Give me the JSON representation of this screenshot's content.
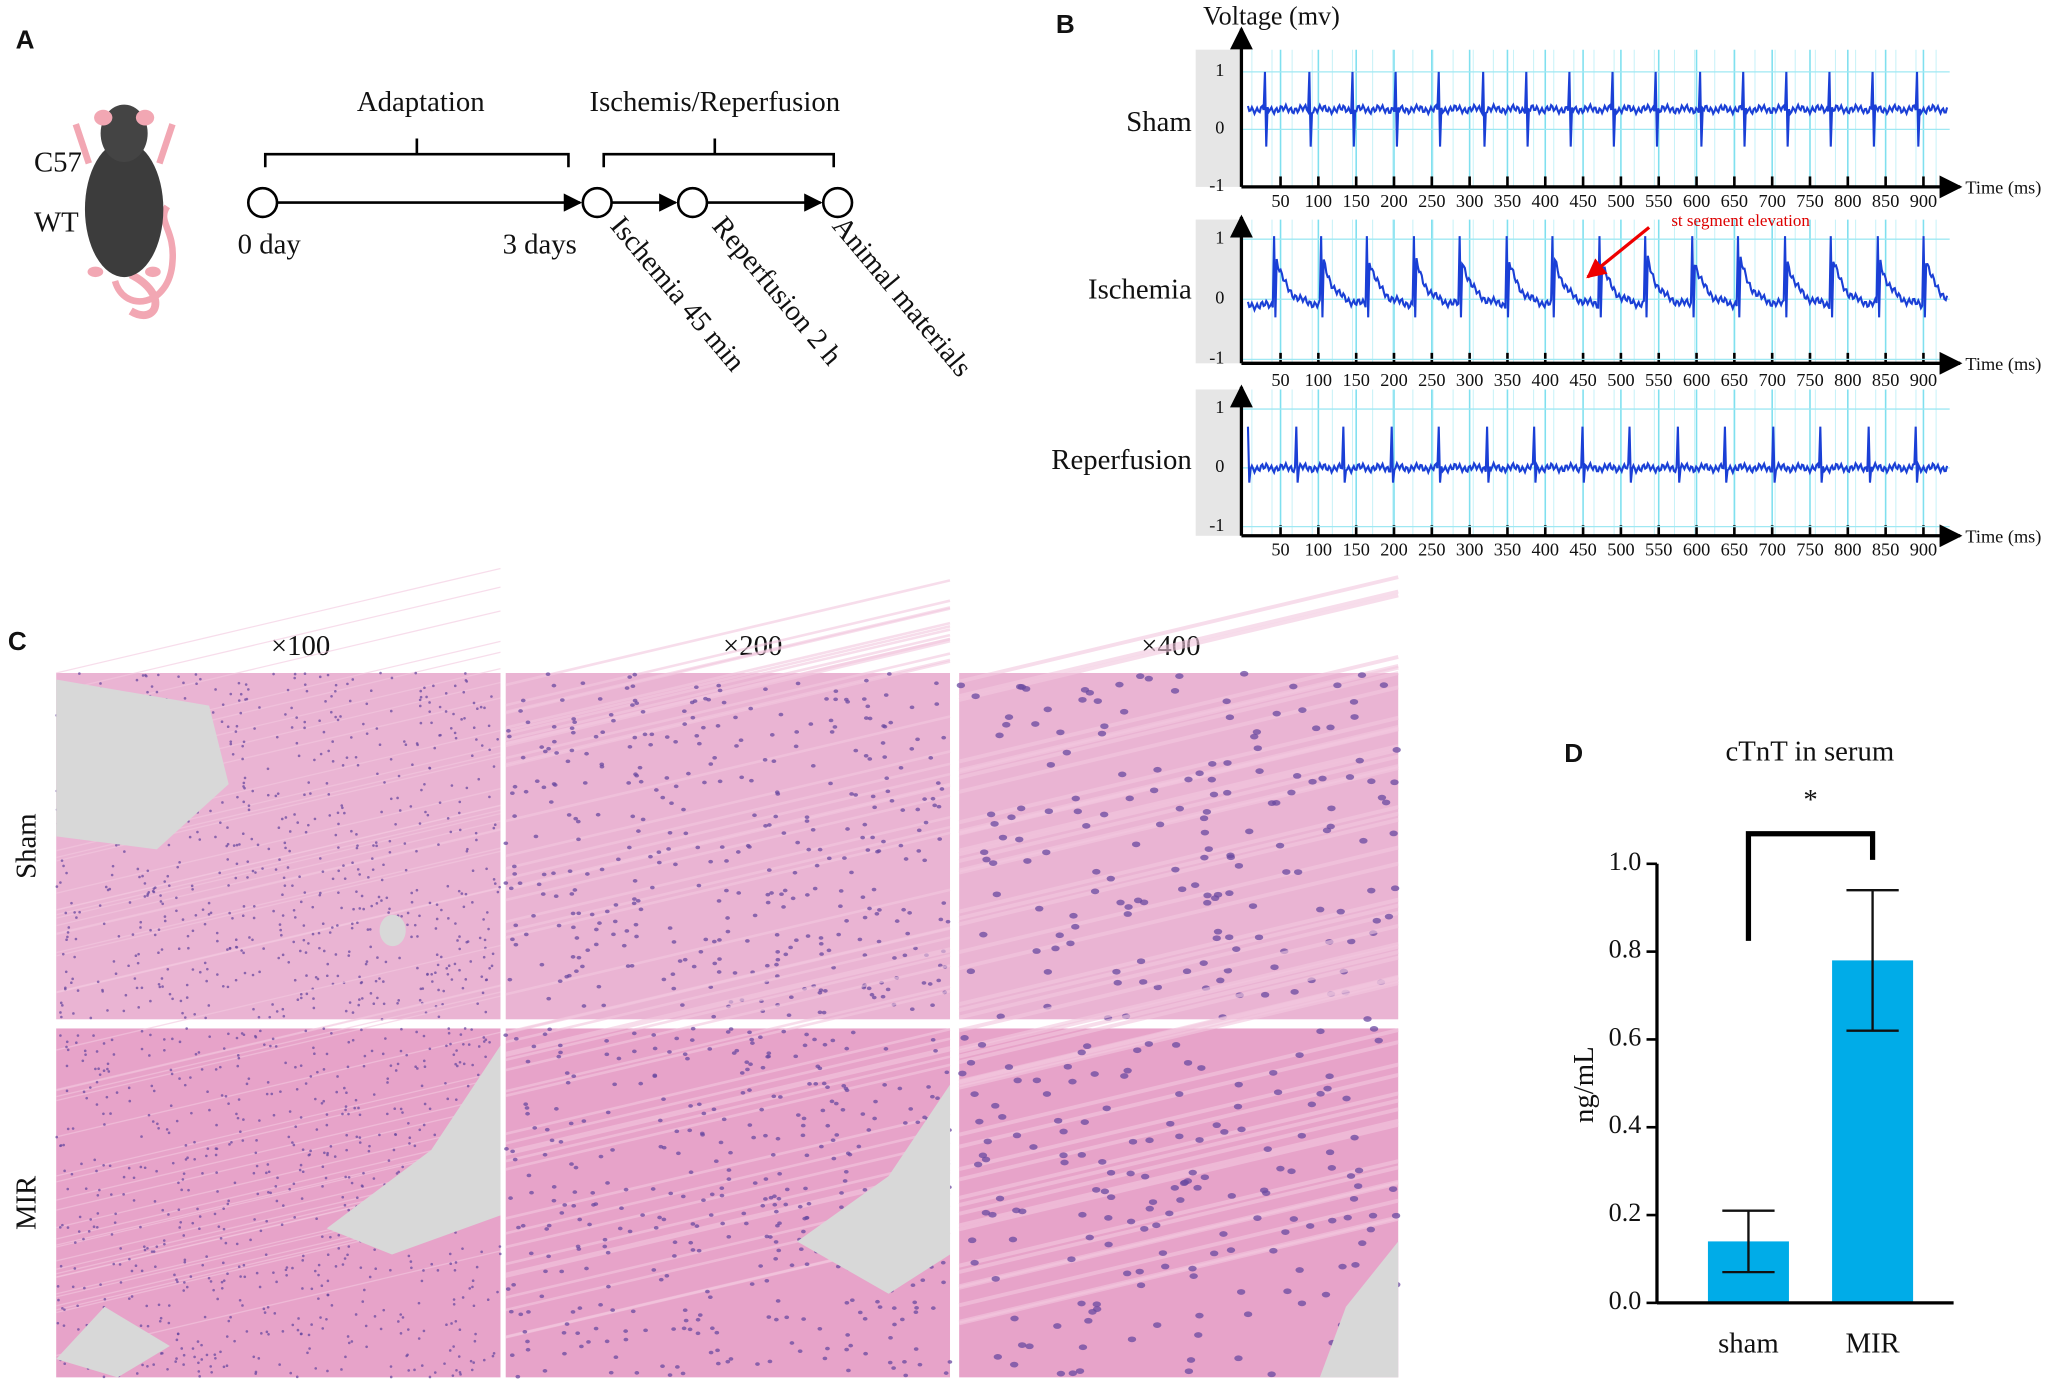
{
  "panel_a": {
    "label": "A",
    "strain": "C57",
    "genotype": "WT",
    "phases": [
      "Adaptation",
      "Ischemis/Reperfusion"
    ],
    "days": [
      "0 day",
      "3 days"
    ],
    "steps": [
      "Ischemia 45 min",
      "Reperfusion 2 h",
      "Animal materials"
    ]
  },
  "panel_b": {
    "label": "B",
    "y_label": "Voltage (mv)",
    "x_label": "Time (ms)",
    "traces": [
      "Sham",
      "Ischemia",
      "Reperfusion"
    ],
    "yticks": [
      1,
      0,
      -1
    ],
    "xticks": [
      50,
      100,
      150,
      200,
      250,
      300,
      350,
      400,
      450,
      500,
      550,
      600,
      650,
      700,
      750,
      800,
      850,
      900
    ],
    "annotation": "st segment elevation"
  },
  "panel_c": {
    "label": "C",
    "magnifications": [
      "×100",
      "×200",
      "×400"
    ],
    "groups": [
      "Sham",
      "MIR"
    ]
  },
  "panel_d": {
    "label": "D"
  },
  "chart_data": {
    "type": "bar",
    "title": "cTnT in serum",
    "y_label": "ng/mL",
    "categories": [
      "sham",
      "MIR"
    ],
    "values": [
      0.14,
      0.78
    ],
    "errors": [
      0.07,
      0.16
    ],
    "color": "#00ace8",
    "significance": "*",
    "ylim": [
      0,
      1.0
    ],
    "yticks": [
      {
        "value": 0,
        "label": "0.0"
      },
      {
        "value": 0.2,
        "label": "0.2"
      },
      {
        "value": 0.4,
        "label": "0.4"
      },
      {
        "value": 0.6,
        "label": "0.6"
      },
      {
        "value": 0.8,
        "label": "0.8"
      },
      {
        "value": 1.0,
        "label": "1.0"
      }
    ]
  }
}
